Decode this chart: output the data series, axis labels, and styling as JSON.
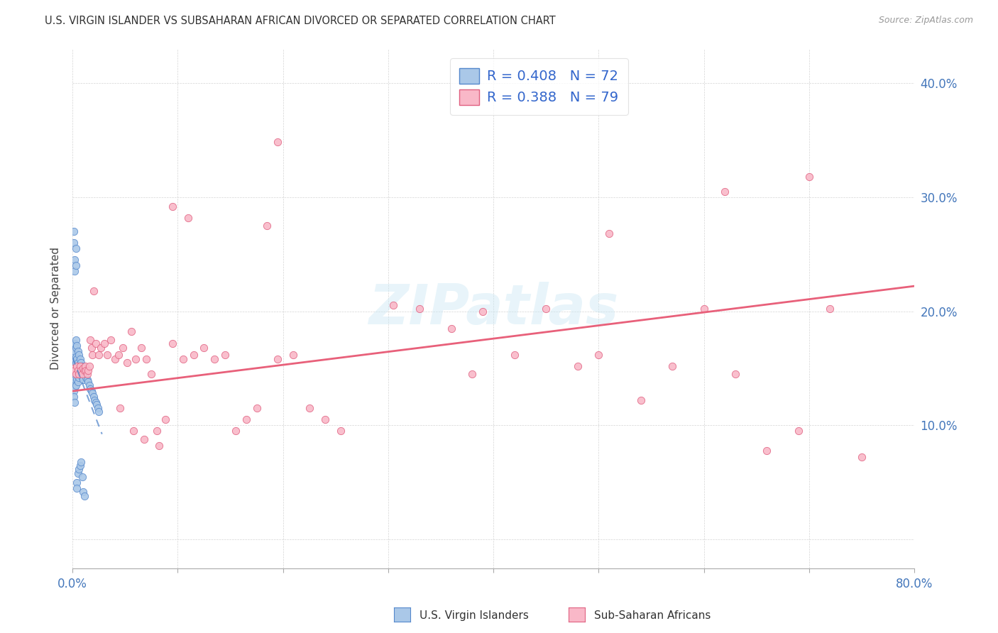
{
  "title": "U.S. VIRGIN ISLANDER VS SUBSAHARAN AFRICAN DIVORCED OR SEPARATED CORRELATION CHART",
  "source": "Source: ZipAtlas.com",
  "ylabel": "Divorced or Separated",
  "xlim": [
    0,
    0.8
  ],
  "ylim": [
    -0.025,
    0.43
  ],
  "x_ticks": [
    0.0,
    0.1,
    0.2,
    0.3,
    0.4,
    0.5,
    0.6,
    0.7,
    0.8
  ],
  "y_ticks": [
    0.0,
    0.1,
    0.2,
    0.3,
    0.4
  ],
  "blue_R": 0.408,
  "blue_N": 72,
  "pink_R": 0.388,
  "pink_N": 79,
  "blue_color": "#aac8e8",
  "blue_edge_color": "#5588cc",
  "pink_color": "#f9b8c8",
  "pink_edge_color": "#e06080",
  "blue_line_color": "#5588cc",
  "pink_line_color": "#e8607a",
  "legend_color": "#3366cc",
  "watermark": "ZIPatlas",
  "background_color": "#ffffff",
  "blue_x": [
    0.001,
    0.001,
    0.001,
    0.001,
    0.001,
    0.001,
    0.001,
    0.001,
    0.001,
    0.002,
    0.002,
    0.002,
    0.002,
    0.002,
    0.002,
    0.002,
    0.002,
    0.003,
    0.003,
    0.003,
    0.003,
    0.003,
    0.003,
    0.004,
    0.004,
    0.004,
    0.004,
    0.005,
    0.005,
    0.005,
    0.005,
    0.006,
    0.006,
    0.006,
    0.007,
    0.007,
    0.008,
    0.008,
    0.009,
    0.009,
    0.01,
    0.01,
    0.011,
    0.012,
    0.013,
    0.014,
    0.015,
    0.016,
    0.017,
    0.018,
    0.019,
    0.02,
    0.021,
    0.022,
    0.023,
    0.024,
    0.025,
    0.001,
    0.001,
    0.002,
    0.002,
    0.003,
    0.003,
    0.004,
    0.004,
    0.005,
    0.006,
    0.007,
    0.008,
    0.009,
    0.01,
    0.011
  ],
  "blue_y": [
    0.155,
    0.162,
    0.17,
    0.148,
    0.152,
    0.143,
    0.138,
    0.13,
    0.125,
    0.158,
    0.165,
    0.172,
    0.145,
    0.15,
    0.14,
    0.133,
    0.12,
    0.168,
    0.175,
    0.155,
    0.148,
    0.16,
    0.135,
    0.17,
    0.158,
    0.148,
    0.14,
    0.165,
    0.155,
    0.148,
    0.138,
    0.162,
    0.152,
    0.142,
    0.158,
    0.148,
    0.155,
    0.145,
    0.152,
    0.142,
    0.15,
    0.14,
    0.148,
    0.145,
    0.142,
    0.14,
    0.138,
    0.135,
    0.132,
    0.13,
    0.128,
    0.125,
    0.122,
    0.12,
    0.118,
    0.115,
    0.112,
    0.27,
    0.26,
    0.245,
    0.235,
    0.255,
    0.24,
    0.05,
    0.045,
    0.058,
    0.062,
    0.065,
    0.068,
    0.055,
    0.042,
    0.038
  ],
  "pink_x": [
    0.001,
    0.002,
    0.003,
    0.004,
    0.005,
    0.006,
    0.007,
    0.008,
    0.009,
    0.01,
    0.011,
    0.012,
    0.013,
    0.014,
    0.015,
    0.016,
    0.017,
    0.018,
    0.019,
    0.02,
    0.022,
    0.025,
    0.027,
    0.03,
    0.033,
    0.036,
    0.04,
    0.044,
    0.048,
    0.052,
    0.056,
    0.06,
    0.065,
    0.07,
    0.075,
    0.08,
    0.088,
    0.095,
    0.105,
    0.115,
    0.125,
    0.135,
    0.145,
    0.155,
    0.165,
    0.175,
    0.185,
    0.195,
    0.21,
    0.225,
    0.24,
    0.255,
    0.195,
    0.305,
    0.33,
    0.36,
    0.39,
    0.42,
    0.45,
    0.48,
    0.51,
    0.54,
    0.57,
    0.6,
    0.63,
    0.66,
    0.69,
    0.72,
    0.75,
    0.38,
    0.058,
    0.045,
    0.068,
    0.082,
    0.095,
    0.11,
    0.5,
    0.62,
    0.7
  ],
  "pink_y": [
    0.15,
    0.148,
    0.145,
    0.152,
    0.148,
    0.145,
    0.152,
    0.148,
    0.145,
    0.15,
    0.148,
    0.152,
    0.148,
    0.145,
    0.148,
    0.152,
    0.175,
    0.168,
    0.162,
    0.218,
    0.172,
    0.162,
    0.168,
    0.172,
    0.162,
    0.175,
    0.158,
    0.162,
    0.168,
    0.155,
    0.182,
    0.158,
    0.168,
    0.158,
    0.145,
    0.095,
    0.105,
    0.172,
    0.158,
    0.162,
    0.168,
    0.158,
    0.162,
    0.095,
    0.105,
    0.115,
    0.275,
    0.158,
    0.162,
    0.115,
    0.105,
    0.095,
    0.348,
    0.205,
    0.202,
    0.185,
    0.2,
    0.162,
    0.202,
    0.152,
    0.268,
    0.122,
    0.152,
    0.202,
    0.145,
    0.078,
    0.095,
    0.202,
    0.072,
    0.145,
    0.095,
    0.115,
    0.088,
    0.082,
    0.292,
    0.282,
    0.162,
    0.305,
    0.318
  ],
  "blue_trend_x_end": 0.028,
  "pink_trend_intercept": 0.13,
  "pink_trend_slope": 0.115
}
